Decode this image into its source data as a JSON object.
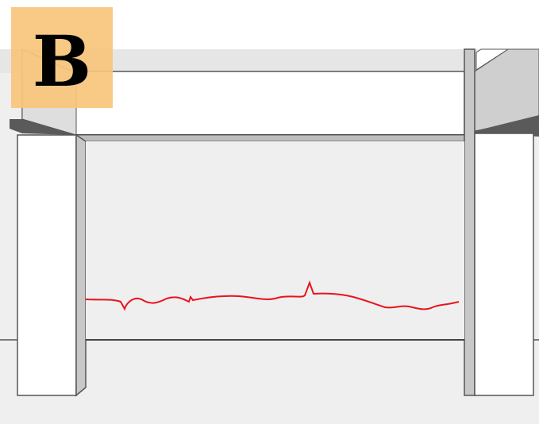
{
  "panel_label": "B",
  "colors": {
    "background": "#ffffff",
    "wall_fill": "#efefef",
    "beam_fill": "#ffffff",
    "column_front": "#ffffff",
    "column_side": "#c8c8c8",
    "column_top_dark": "#5a5a5a",
    "roof_gray": "#cfcfcf",
    "outline": "#444444",
    "crack": "#e8141b",
    "label_box": "#f9c57c"
  }
}
